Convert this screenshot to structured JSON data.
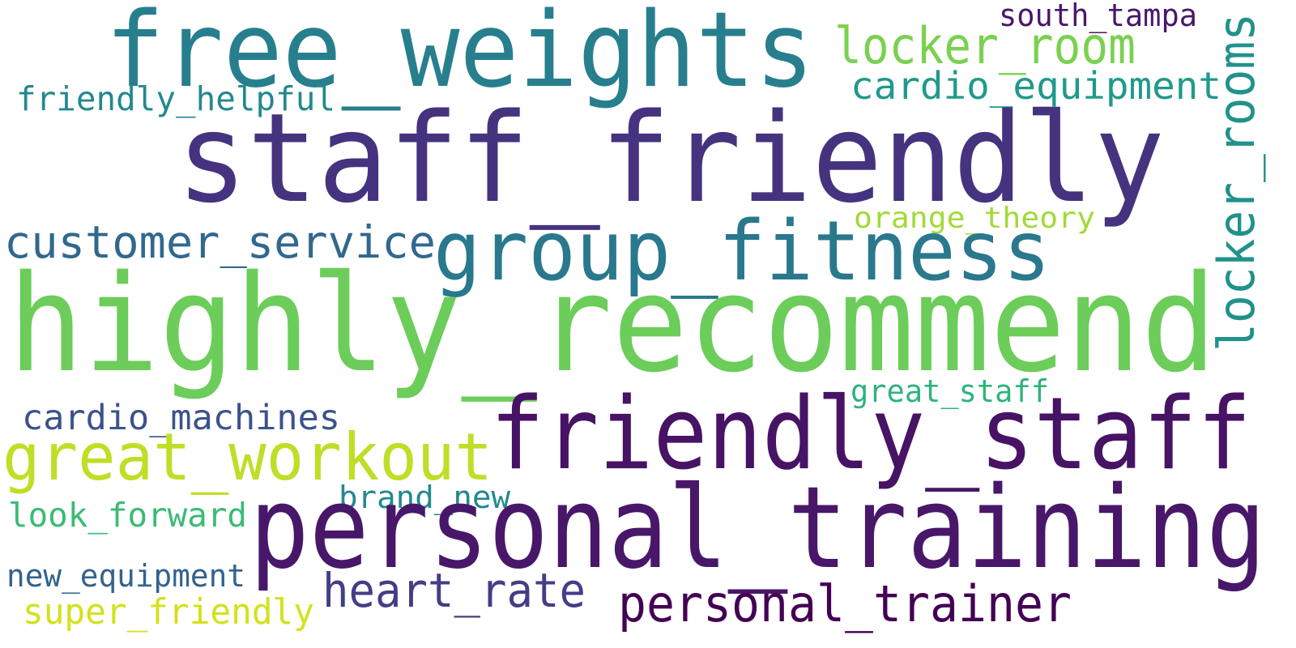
{
  "words": [
    {
      "text": "free_weights",
      "color": "#277f8e"
    },
    {
      "text": "south_tampa",
      "color": "#48186a"
    },
    {
      "text": "locker_room",
      "color": "#7ad151"
    },
    {
      "text": "cardio_equipment",
      "color": "#1f9a8a"
    },
    {
      "text": "friendly_helpful",
      "color": "#23898e"
    },
    {
      "text": "staff_friendly",
      "color": "#46337f"
    },
    {
      "text": "locker_rooms",
      "color": "#21918c"
    },
    {
      "text": "orange_theory",
      "color": "#a2da37"
    },
    {
      "text": "customer_service",
      "color": "#31688e"
    },
    {
      "text": "group_fitness",
      "color": "#2a788e"
    },
    {
      "text": "highly_recommend",
      "color": "#6ccd5a"
    },
    {
      "text": "great_staff",
      "color": "#2eb37c"
    },
    {
      "text": "cardio_machines",
      "color": "#3b528b"
    },
    {
      "text": "friendly_staff",
      "color": "#471365"
    },
    {
      "text": "great_workout",
      "color": "#bddf26"
    },
    {
      "text": "brand_new",
      "color": "#23898e"
    },
    {
      "text": "look_forward",
      "color": "#3bbb75"
    },
    {
      "text": "personal_training",
      "color": "#481769"
    },
    {
      "text": "new_equipment",
      "color": "#33628d"
    },
    {
      "text": "heart_rate",
      "color": "#433e85"
    },
    {
      "text": "super_friendly",
      "color": "#d2e21b"
    },
    {
      "text": "personal_trainer",
      "color": "#440154"
    }
  ]
}
